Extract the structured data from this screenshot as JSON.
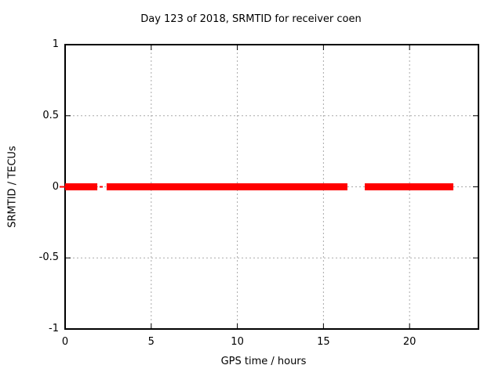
{
  "chart_data": {
    "type": "line",
    "title": "Day 123 of 2018, SRMTID for receiver coen",
    "xlabel": "GPS time / hours",
    "ylabel": "SRMTID / TECUs",
    "xlim": [
      0,
      24
    ],
    "ylim": [
      -1,
      1
    ],
    "grid": true,
    "grid_color": "#a9a9a9",
    "border_color": "#000000",
    "legend": "none",
    "x_ticks": [
      {
        "value": 0,
        "label": "0"
      },
      {
        "value": 5,
        "label": "5"
      },
      {
        "value": 10,
        "label": "10"
      },
      {
        "value": 15,
        "label": "15"
      },
      {
        "value": 20,
        "label": "20"
      }
    ],
    "y_ticks": [
      {
        "value": -1,
        "label": "-1"
      },
      {
        "value": -0.5,
        "label": "-0.5"
      },
      {
        "value": 0,
        "label": "0"
      },
      {
        "value": 0.5,
        "label": "0.5"
      },
      {
        "value": 1,
        "label": "1"
      }
    ],
    "series": [
      {
        "name": "SRMTID",
        "color": "#ff0000",
        "y_value": 0,
        "description": "horizontal segments at SRMTID = 0 TECUs with data gaps",
        "segments": [
          {
            "x_start": -0.32,
            "x_end": 0.05,
            "weight": "thin"
          },
          {
            "x_start": 0.0,
            "x_end": 1.87,
            "weight": "thick"
          },
          {
            "x_start": 2.0,
            "x_end": 2.19,
            "weight": "thin"
          },
          {
            "x_start": 2.41,
            "x_end": 16.39,
            "weight": "thick"
          },
          {
            "x_start": 17.4,
            "x_end": 22.54,
            "weight": "thick"
          }
        ]
      }
    ]
  }
}
